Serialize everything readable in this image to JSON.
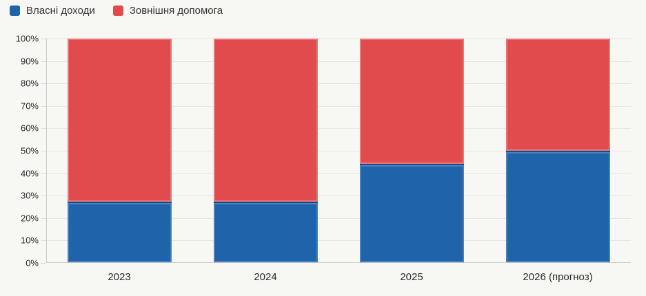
{
  "page": {
    "background": "#f7f7f4"
  },
  "legend": {
    "items": [
      {
        "label": "Власні доходи",
        "color": "#1f63aa"
      },
      {
        "label": "Зовнішня допомога",
        "color": "#e14b4e"
      }
    ]
  },
  "chart_data": {
    "type": "bar",
    "stacked": true,
    "percent": true,
    "categories": [
      "2023",
      "2024",
      "2025",
      "2026 (прогноз)"
    ],
    "series": [
      {
        "name": "Власні доходи",
        "color": "#1f63aa",
        "values": [
          27,
          27,
          44,
          50
        ]
      },
      {
        "name": "Зовнішня допомога",
        "color": "#e14b4e",
        "values": [
          73,
          73,
          56,
          50
        ]
      }
    ],
    "title": "",
    "xlabel": "",
    "ylabel": "",
    "ylim": [
      0,
      100
    ],
    "yticks": [
      "0%",
      "10%",
      "20%",
      "30%",
      "40%",
      "50%",
      "60%",
      "70%",
      "80%",
      "90%",
      "100%"
    ],
    "grid": true,
    "legend_position": "top-left",
    "style": {
      "grid_color": "#e5e5e2",
      "axis_color": "#c9c9c6",
      "tick_text_color": "#2b2b2b",
      "plot_background": "#f7f7f4"
    }
  }
}
